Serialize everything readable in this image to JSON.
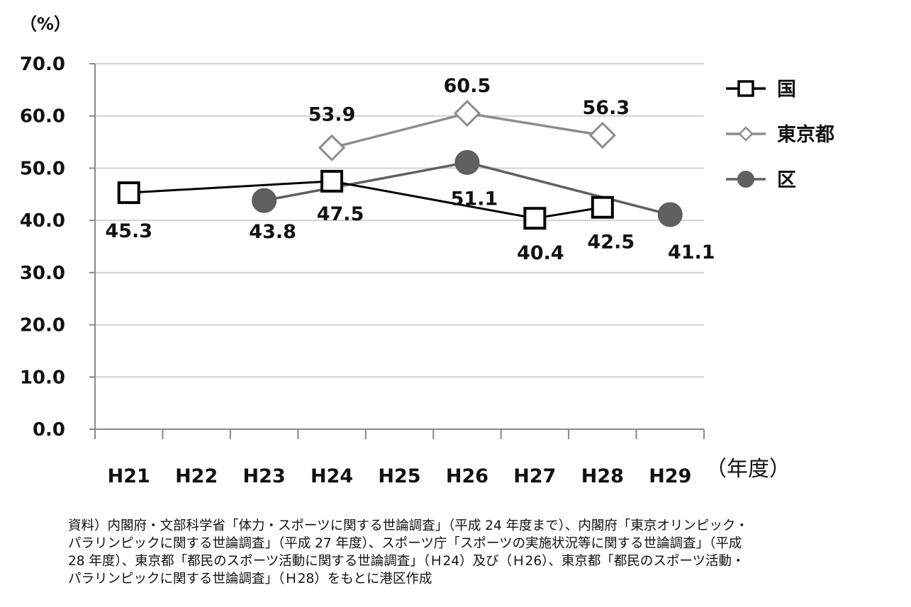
{
  "chart_data": {
    "type": "line",
    "ylabel": "（%）",
    "xlabel": "（年度）",
    "ylim": [
      0,
      70
    ],
    "yticks": [
      "0.0",
      "10.0",
      "20.0",
      "30.0",
      "40.0",
      "50.0",
      "60.0",
      "70.0"
    ],
    "categories": [
      "H21",
      "H22",
      "H23",
      "H24",
      "H25",
      "H26",
      "H27",
      "H28",
      "H29"
    ],
    "grid": true,
    "legend": "right",
    "series": [
      {
        "name": "国",
        "color": "#000000",
        "marker": "square",
        "values": [
          45.3,
          null,
          null,
          47.5,
          null,
          null,
          40.4,
          42.5,
          null
        ],
        "labels": [
          "45.3",
          null,
          null,
          "47.5",
          null,
          null,
          "40.4",
          "42.5",
          null
        ]
      },
      {
        "name": "東京都",
        "color": "#8c8c8c",
        "marker": "diamond",
        "values": [
          null,
          null,
          null,
          53.9,
          null,
          60.5,
          null,
          56.3,
          null
        ],
        "labels": [
          null,
          null,
          null,
          "53.9",
          null,
          "60.5",
          null,
          "56.3",
          null
        ]
      },
      {
        "name": "区",
        "color": "#606060",
        "marker": "circle",
        "values": [
          null,
          null,
          43.8,
          null,
          null,
          51.1,
          null,
          null,
          41.1
        ],
        "labels": [
          null,
          null,
          "43.8",
          null,
          null,
          "51.1",
          null,
          null,
          "41.1"
        ]
      }
    ]
  },
  "source": {
    "lines": [
      "資料）内閣府・文部科学省「体力・スポーツに関する世論調査」（平成 24 年度まで）、内閣府「東京オリンピック・",
      "パラリンピックに関する世論調査」（平成 27 年度）、スポーツ庁「スポーツの実施状況等に関する世論調査」（平成",
      "28 年度）、東京都「都民のスポーツ活動に関する世論調査」（Ｈ24）及び（Ｈ26）、東京都「都民のスポーツ活動・",
      "パラリンピックに関する世論調査」（Ｈ28）をもとに港区作成"
    ]
  }
}
